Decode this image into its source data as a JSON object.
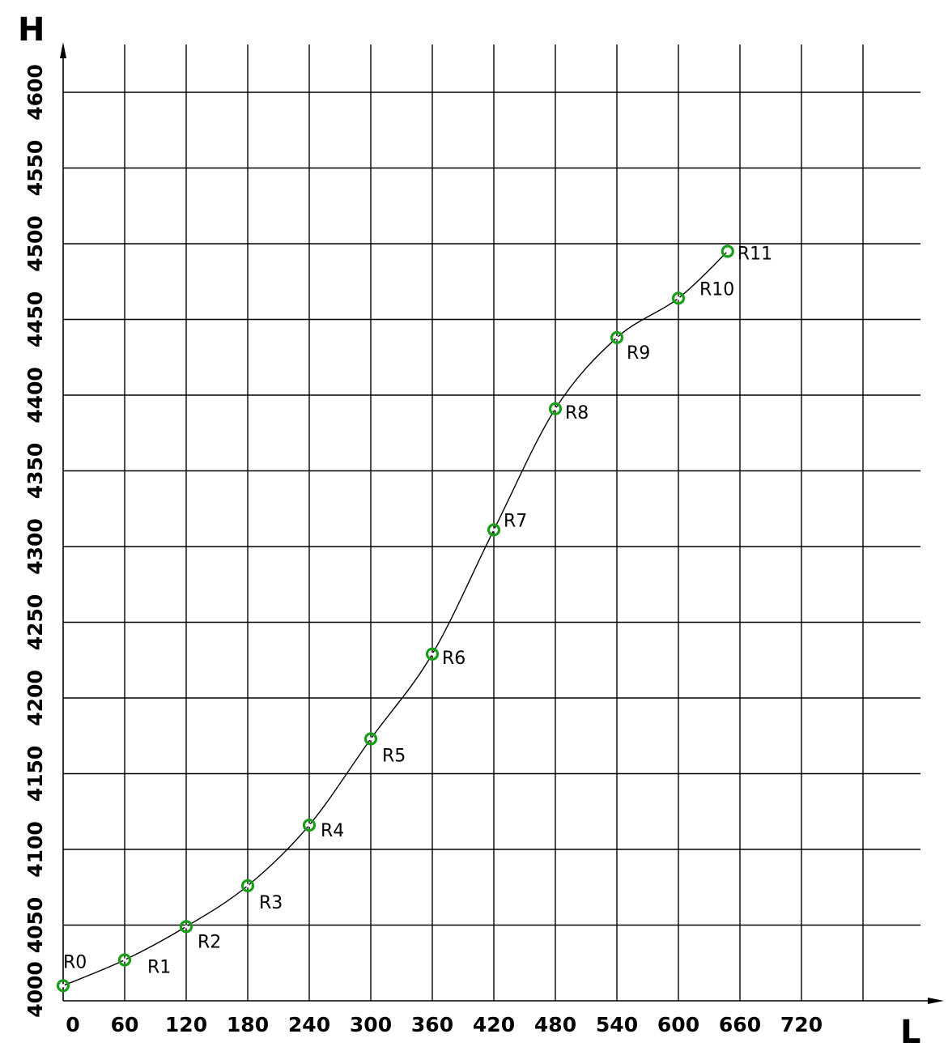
{
  "chart_data": {
    "type": "line",
    "xlabel": "L",
    "ylabel": "H",
    "xlim": [
      0,
      780
    ],
    "ylim": [
      4000,
      4630
    ],
    "x_ticks": [
      0,
      60,
      120,
      180,
      240,
      300,
      360,
      420,
      480,
      540,
      600,
      660,
      720
    ],
    "y_ticks": [
      4000,
      4050,
      4100,
      4150,
      4200,
      4250,
      4300,
      4350,
      4400,
      4450,
      4500,
      4550,
      4600
    ],
    "grid": true,
    "marker_color": "#1a9e1a",
    "points": [
      {
        "label": "R0",
        "x": 0,
        "y": 4010
      },
      {
        "label": "R1",
        "x": 60,
        "y": 4027
      },
      {
        "label": "R2",
        "x": 120,
        "y": 4049
      },
      {
        "label": "R3",
        "x": 180,
        "y": 4076
      },
      {
        "label": "R4",
        "x": 240,
        "y": 4116
      },
      {
        "label": "R5",
        "x": 300,
        "y": 4173
      },
      {
        "label": "R6",
        "x": 360,
        "y": 4229
      },
      {
        "label": "R7",
        "x": 420,
        "y": 4311
      },
      {
        "label": "R8",
        "x": 480,
        "y": 4391
      },
      {
        "label": "R9",
        "x": 540,
        "y": 4438
      },
      {
        "label": "R10",
        "x": 600,
        "y": 4464
      },
      {
        "label": "R11",
        "x": 648,
        "y": 4495
      }
    ]
  }
}
